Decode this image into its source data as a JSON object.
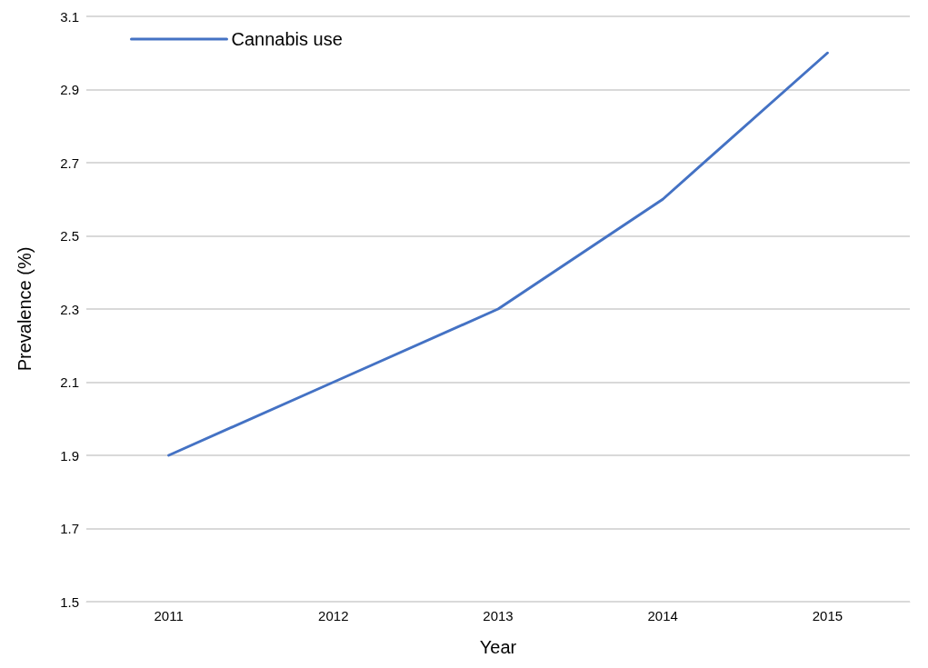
{
  "chart_data": {
    "type": "line",
    "xlabel": "Year",
    "ylabel": "Prevalence (%)",
    "categories": [
      "2011",
      "2012",
      "2013",
      "2014",
      "2015"
    ],
    "series": [
      {
        "name": "Cannabis use",
        "color": "#4472c4",
        "values": [
          1.9,
          2.1,
          2.3,
          2.6,
          3.0
        ]
      }
    ],
    "ylim": [
      1.5,
      3.1
    ],
    "yticks": [
      {
        "value": 1.5,
        "label": "1.5"
      },
      {
        "value": 1.7,
        "label": "1.7"
      },
      {
        "value": 1.9,
        "label": "1.9"
      },
      {
        "value": 2.1,
        "label": "2.1"
      },
      {
        "value": 2.3,
        "label": "2.3"
      },
      {
        "value": 2.5,
        "label": "2.5"
      },
      {
        "value": 2.7,
        "label": "2.7"
      },
      {
        "value": 2.9,
        "label": "2.9"
      },
      {
        "value": 3.1,
        "label": "3.1"
      }
    ],
    "grid": "y",
    "legend": "top left",
    "marker": "none",
    "line_style": "solid"
  }
}
